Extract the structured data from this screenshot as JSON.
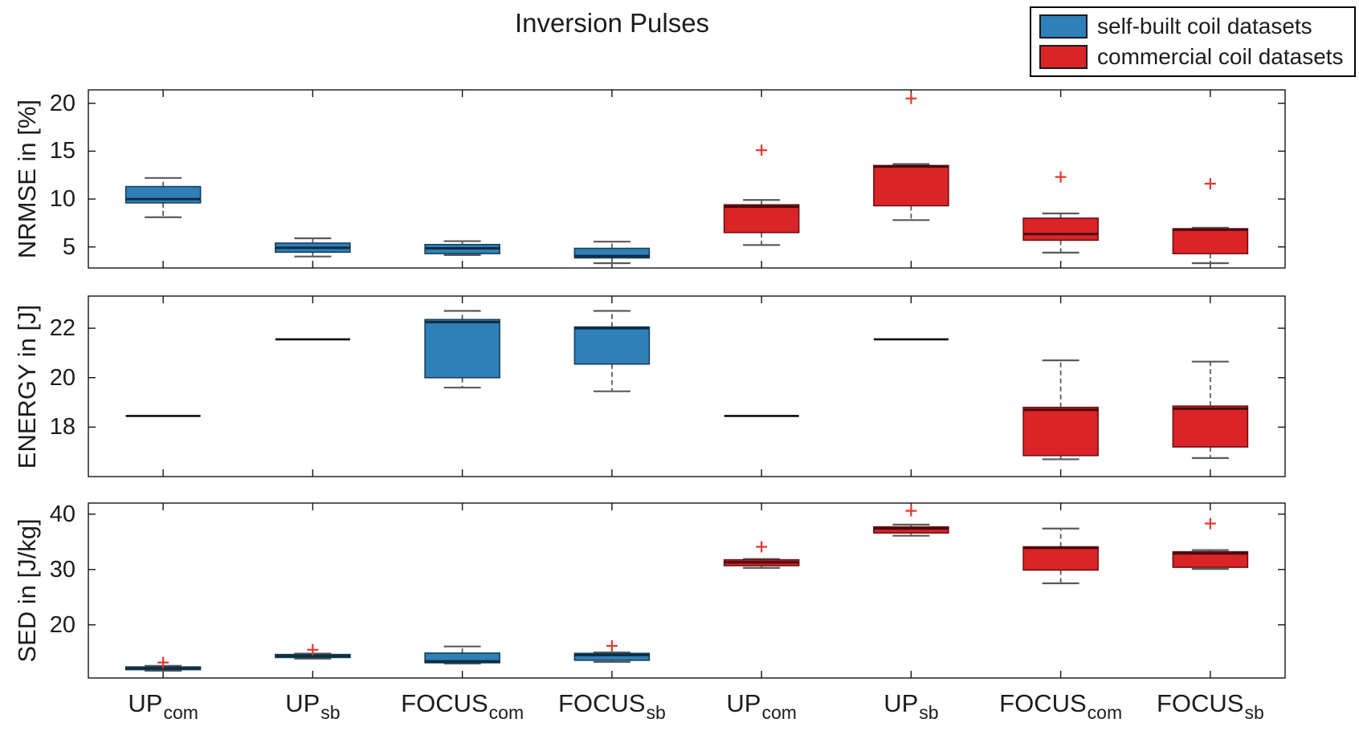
{
  "title": "Inversion Pulses",
  "legend": {
    "items": [
      {
        "label": "self-built coil datasets",
        "series": "self-built",
        "color": "#2F7FB8"
      },
      {
        "label": "commercial coil datasets",
        "series": "commercial",
        "color": "#DB2428"
      }
    ]
  },
  "colors": {
    "self-built": {
      "fill": "#2F7FB8",
      "edge": "#16405C",
      "median": "#0E2C40"
    },
    "commercial": {
      "fill": "#DB2428",
      "edge": "#6E1012",
      "median": "#470A0B"
    }
  },
  "outlier_marker": {
    "glyph": "plus",
    "color": "#E4372E"
  },
  "chart_data": [
    {
      "type": "boxplot",
      "ylabel": "NRMSE in [%]",
      "ylim": [
        2.8,
        21.4
      ],
      "yticks": [
        5,
        10,
        15,
        20
      ],
      "grid": false,
      "groups": [
        {
          "category": "UP",
          "subscript": "com",
          "series": "self-built",
          "whisker_low": 8.1,
          "q1": 9.6,
          "median": 10.0,
          "q3": 11.3,
          "whisker_high": 12.2,
          "outliers": []
        },
        {
          "category": "UP",
          "subscript": "sb",
          "series": "self-built",
          "whisker_low": 4.0,
          "q1": 4.45,
          "median": 4.9,
          "q3": 5.4,
          "whisker_high": 5.9,
          "outliers": []
        },
        {
          "category": "FOCUS",
          "subscript": "com",
          "series": "self-built",
          "whisker_low": 4.15,
          "q1": 4.3,
          "median": 4.85,
          "q3": 5.25,
          "whisker_high": 5.6,
          "outliers": []
        },
        {
          "category": "FOCUS",
          "subscript": "sb",
          "series": "self-built",
          "whisker_low": 3.3,
          "q1": 3.85,
          "median": 4.05,
          "q3": 4.85,
          "whisker_high": 5.55,
          "outliers": []
        },
        {
          "category": "UP",
          "subscript": "com",
          "series": "commercial",
          "whisker_low": 5.2,
          "q1": 6.5,
          "median": 9.2,
          "q3": 9.4,
          "whisker_high": 9.9,
          "outliers": [
            15.1
          ]
        },
        {
          "category": "UP",
          "subscript": "sb",
          "series": "commercial",
          "whisker_low": 7.8,
          "q1": 9.3,
          "median": 13.4,
          "q3": 13.5,
          "whisker_high": 13.65,
          "outliers": [
            20.5
          ]
        },
        {
          "category": "FOCUS",
          "subscript": "com",
          "series": "commercial",
          "whisker_low": 4.4,
          "q1": 5.7,
          "median": 6.35,
          "q3": 8.0,
          "whisker_high": 8.5,
          "outliers": [
            12.3
          ]
        },
        {
          "category": "FOCUS",
          "subscript": "sb",
          "series": "commercial",
          "whisker_low": 3.3,
          "q1": 4.3,
          "median": 6.8,
          "q3": 6.9,
          "whisker_high": 7.0,
          "outliers": [
            11.6
          ]
        }
      ]
    },
    {
      "type": "boxplot",
      "ylabel": "ENERGY in [J]",
      "ylim": [
        16.0,
        23.3
      ],
      "yticks": [
        18,
        20,
        22
      ],
      "grid": false,
      "groups": [
        {
          "category": "UP",
          "subscript": "com",
          "series": "self-built",
          "all_equal_value": 18.45
        },
        {
          "category": "UP",
          "subscript": "sb",
          "series": "self-built",
          "all_equal_value": 21.55
        },
        {
          "category": "FOCUS",
          "subscript": "com",
          "series": "self-built",
          "whisker_low": 19.6,
          "q1": 20.0,
          "median": 22.25,
          "q3": 22.35,
          "whisker_high": 22.7,
          "outliers": []
        },
        {
          "category": "FOCUS",
          "subscript": "sb",
          "series": "self-built",
          "whisker_low": 19.45,
          "q1": 20.55,
          "median": 22.0,
          "q3": 22.05,
          "whisker_high": 22.7,
          "outliers": []
        },
        {
          "category": "UP",
          "subscript": "com",
          "series": "commercial",
          "all_equal_value": 18.45
        },
        {
          "category": "UP",
          "subscript": "sb",
          "series": "commercial",
          "all_equal_value": 21.55
        },
        {
          "category": "FOCUS",
          "subscript": "com",
          "series": "commercial",
          "whisker_low": 16.7,
          "q1": 16.85,
          "median": 18.7,
          "q3": 18.8,
          "whisker_high": 20.7,
          "outliers": []
        },
        {
          "category": "FOCUS",
          "subscript": "sb",
          "series": "commercial",
          "whisker_low": 16.75,
          "q1": 17.2,
          "median": 18.75,
          "q3": 18.85,
          "whisker_high": 20.65,
          "outliers": []
        }
      ]
    },
    {
      "type": "boxplot",
      "ylabel": "SED in [J/kg]",
      "ylim": [
        10.4,
        42.0
      ],
      "yticks": [
        20,
        30,
        40
      ],
      "grid": false,
      "show_xlabels": true,
      "groups": [
        {
          "category": "UP",
          "subscript": "com",
          "series": "self-built",
          "whisker_low": 11.7,
          "q1": 11.9,
          "median": 12.15,
          "q3": 12.4,
          "whisker_high": 12.6,
          "outliers": [
            13.2
          ]
        },
        {
          "category": "UP",
          "subscript": "sb",
          "series": "self-built",
          "whisker_low": 13.9,
          "q1": 14.1,
          "median": 14.35,
          "q3": 14.65,
          "whisker_high": 14.8,
          "outliers": [
            15.5
          ]
        },
        {
          "category": "FOCUS",
          "subscript": "com",
          "series": "self-built",
          "whisker_low": 13.0,
          "q1": 13.15,
          "median": 13.4,
          "q3": 14.9,
          "whisker_high": 16.1,
          "outliers": []
        },
        {
          "category": "FOCUS",
          "subscript": "sb",
          "series": "self-built",
          "whisker_low": 13.3,
          "q1": 13.6,
          "median": 14.55,
          "q3": 14.85,
          "whisker_high": 15.0,
          "outliers": [
            16.2
          ]
        },
        {
          "category": "UP",
          "subscript": "com",
          "series": "commercial",
          "whisker_low": 30.3,
          "q1": 30.7,
          "median": 31.3,
          "q3": 31.75,
          "whisker_high": 31.9,
          "outliers": [
            34.1
          ]
        },
        {
          "category": "UP",
          "subscript": "sb",
          "series": "commercial",
          "whisker_low": 36.1,
          "q1": 36.6,
          "median": 37.4,
          "q3": 37.7,
          "whisker_high": 38.1,
          "outliers": [
            40.6
          ]
        },
        {
          "category": "FOCUS",
          "subscript": "com",
          "series": "commercial",
          "whisker_low": 27.5,
          "q1": 29.9,
          "median": 33.9,
          "q3": 34.1,
          "whisker_high": 37.4,
          "outliers": []
        },
        {
          "category": "FOCUS",
          "subscript": "sb",
          "series": "commercial",
          "whisker_low": 30.1,
          "q1": 30.4,
          "median": 32.9,
          "q3": 33.2,
          "whisker_high": 33.5,
          "outliers": [
            38.3
          ]
        }
      ]
    }
  ]
}
